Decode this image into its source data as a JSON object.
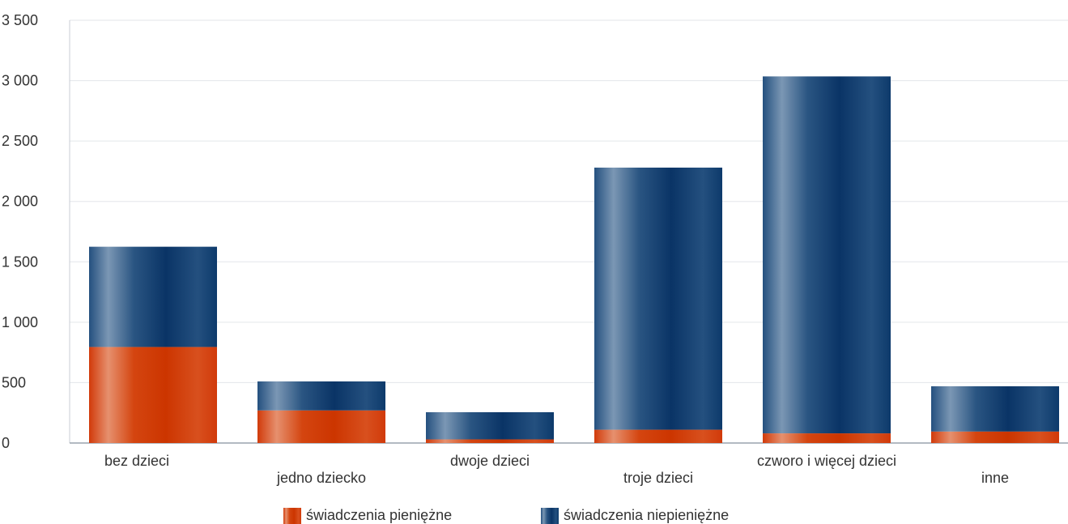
{
  "chart_data": {
    "type": "bar",
    "stacked": true,
    "categories": [
      "bez dzieci",
      "jedno dziecko",
      "dwoje dzieci",
      "troje dzieci",
      "czworo i więcej dzieci",
      "inne"
    ],
    "series": [
      {
        "name": "świadczenia pieniężne",
        "color": "#d13a0a",
        "values": [
          795,
          270,
          30,
          110,
          80,
          95
        ]
      },
      {
        "name": "świadczenia niepieniężne",
        "color": "#0d3a6b",
        "values": [
          830,
          240,
          225,
          2170,
          2955,
          375
        ]
      }
    ],
    "ylim": [
      0,
      3500
    ],
    "yticks": [
      0,
      500,
      1000,
      1500,
      2000,
      2500,
      3000,
      3500
    ],
    "ytick_labels": [
      "0",
      "500",
      "1 000",
      "1 500",
      "2 000",
      "2 500",
      "3 000",
      "3 500"
    ],
    "grid": true,
    "legend_position": "bottom-center",
    "title": "",
    "xlabel": "",
    "ylabel": ""
  }
}
